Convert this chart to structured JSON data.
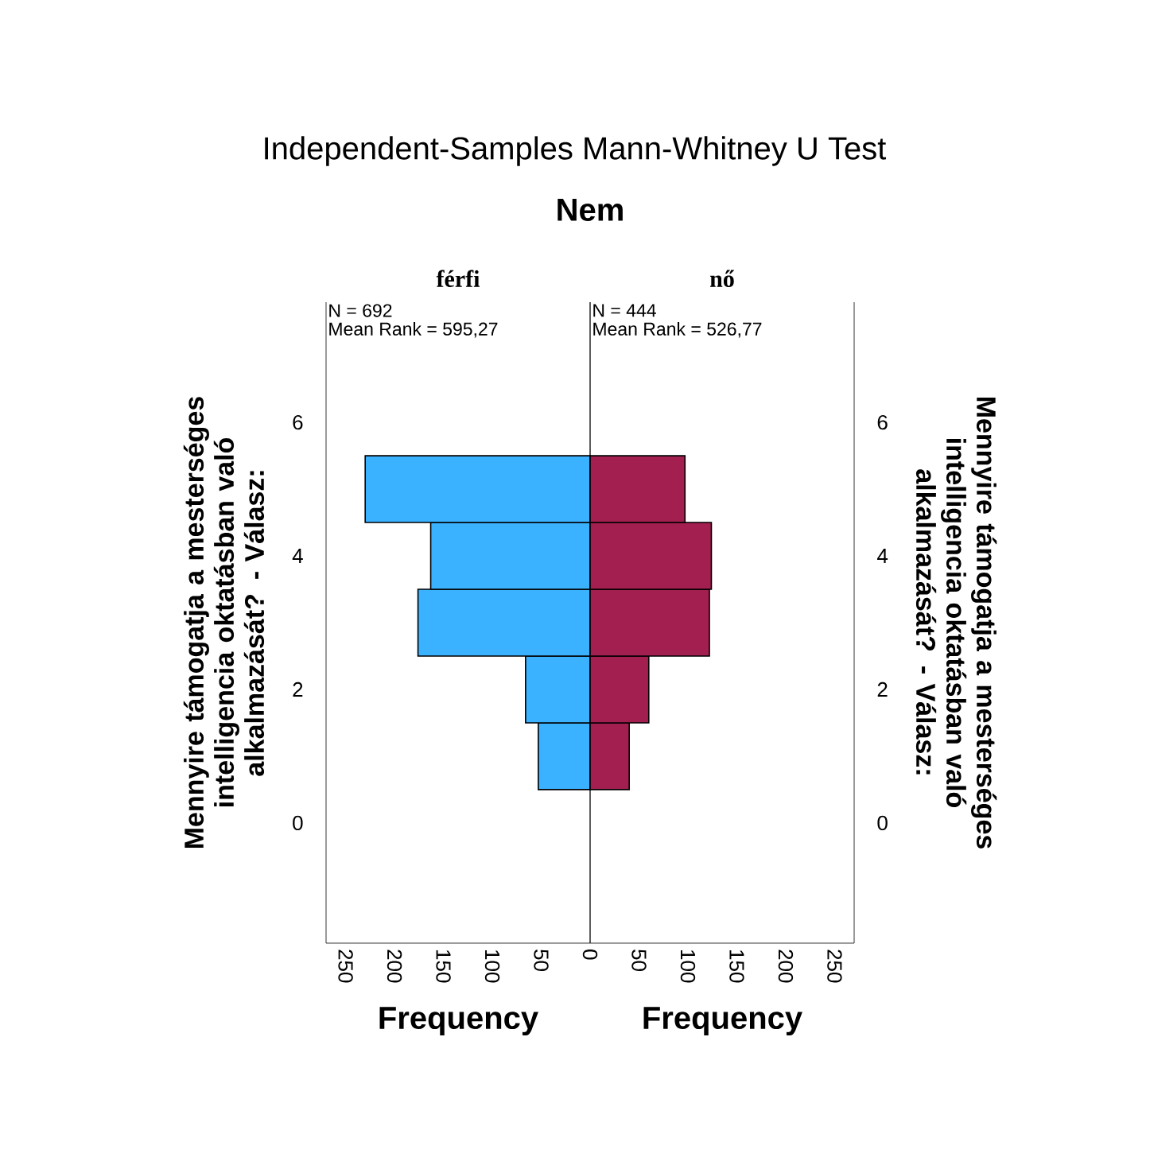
{
  "chart_data": [
    {
      "type": "bar",
      "orientation": "horizontal",
      "title": "Independent-Samples Mann-Whitney U Test",
      "subtitle": "Nem",
      "xlabel": "Frequency",
      "ylabel": "Mennyire támogatja a mesterséges intelligencia oktatásban való alkalmazását? - Válasz:",
      "x": [
        1,
        2,
        3,
        4,
        5
      ],
      "series": [
        {
          "name": "férfi",
          "color": "#3bb2ff",
          "values": [
            53,
            66,
            176,
            163,
            230
          ]
        }
      ],
      "xlim": [
        270,
        0
      ],
      "xticks": [
        250,
        200,
        150,
        100,
        50,
        0
      ],
      "ylim": [
        -1.8,
        7.8
      ],
      "yticks": [
        0,
        2,
        4,
        6
      ],
      "annotations": [
        "N = 692",
        "Mean Rank = 595,27"
      ]
    },
    {
      "type": "bar",
      "orientation": "horizontal",
      "xlabel": "Frequency",
      "ylabel": "Mennyire támogatja a mesterséges intelligencia oktatásban való alkalmazását? - Válasz:",
      "x": [
        1,
        2,
        3,
        4,
        5
      ],
      "series": [
        {
          "name": "nő",
          "color": "#a31f4f",
          "values": [
            40,
            60,
            122,
            124,
            97
          ]
        }
      ],
      "xlim": [
        0,
        270
      ],
      "xticks": [
        50,
        100,
        150,
        200,
        250
      ],
      "ylim": [
        -1.8,
        7.8
      ],
      "yticks": [
        0,
        2,
        4,
        6
      ],
      "annotations": [
        "N = 444",
        "Mean Rank = 526,77"
      ]
    }
  ]
}
